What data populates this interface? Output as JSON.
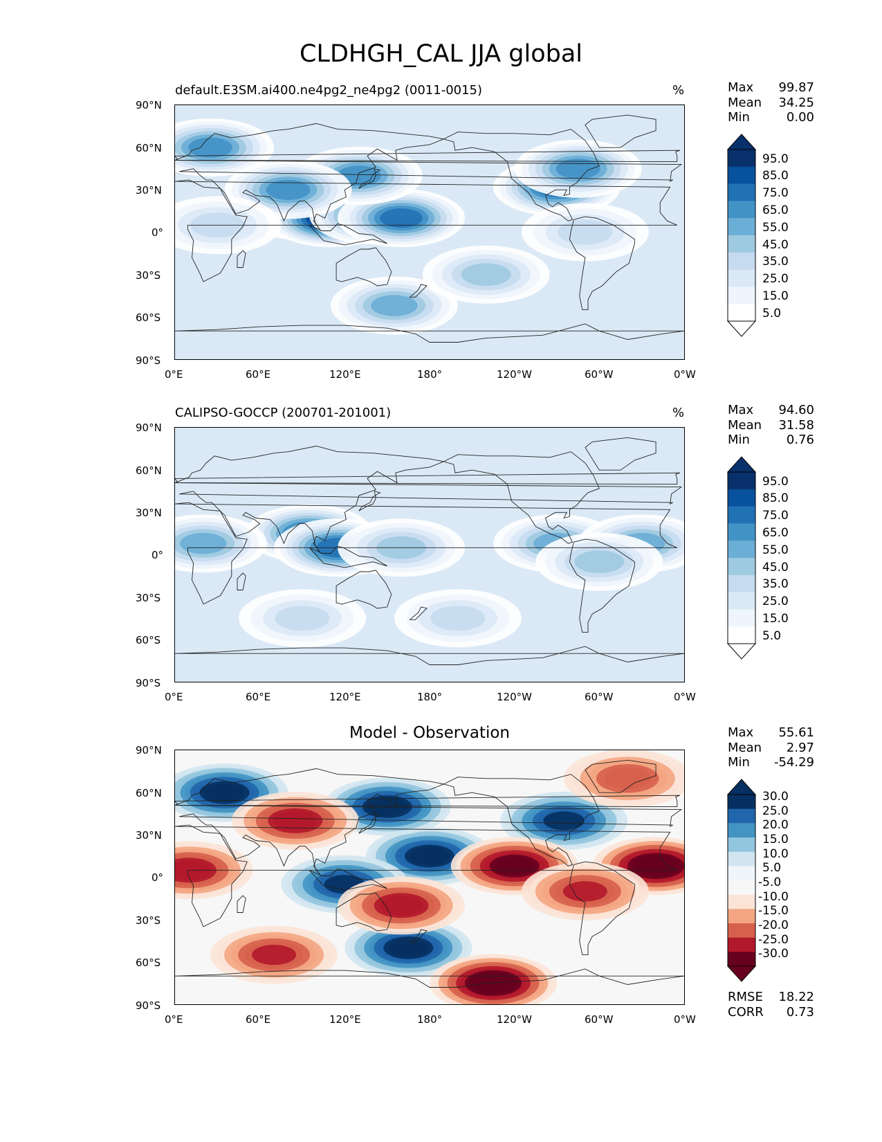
{
  "figure_title": "CLDHGH_CAL JJA global",
  "chart_data": [
    {
      "type": "heatmap",
      "name": "model",
      "title": "default.E3SM.ai400.ne4pg2_ne4pg2 (0011-0015)",
      "units": "%",
      "xticks": [
        "0°E",
        "60°E",
        "120°E",
        "180°",
        "120°W",
        "60°W",
        "0°W"
      ],
      "yticks": [
        "90°N",
        "60°N",
        "30°N",
        "0°",
        "30°S",
        "60°S",
        "90°S"
      ],
      "xlim": [
        0,
        360
      ],
      "ylim": [
        -90,
        90
      ],
      "stats": [
        {
          "name": "Max",
          "value": "99.87"
        },
        {
          "name": "Mean",
          "value": "34.25"
        },
        {
          "name": "Min",
          "value": "0.00"
        }
      ],
      "colorbar": {
        "labels": [
          "95.0",
          "85.0",
          "75.0",
          "65.0",
          "55.0",
          "45.0",
          "35.0",
          "25.0",
          "15.0",
          "5.0"
        ],
        "colors": [
          "#08306b",
          "#08519c",
          "#2171b5",
          "#4292c6",
          "#6baed6",
          "#9ecae1",
          "#c6dbef",
          "#dbe9f6",
          "#eef5fc",
          "#ffffff"
        ],
        "extend": "both"
      },
      "features": [
        {
          "lon": 90,
          "lat": 15,
          "level": 10
        },
        {
          "lon": 110,
          "lat": 10,
          "level": 10
        },
        {
          "lon": 140,
          "lat": 12,
          "level": 8
        },
        {
          "lon": 160,
          "lat": 10,
          "level": 8
        },
        {
          "lon": 130,
          "lat": 40,
          "level": 7
        },
        {
          "lon": 80,
          "lat": 30,
          "level": 7
        },
        {
          "lon": 270,
          "lat": 32,
          "level": 8
        },
        {
          "lon": 285,
          "lat": 45,
          "level": 7
        },
        {
          "lon": 25,
          "lat": 60,
          "level": 7
        },
        {
          "lon": 155,
          "lat": -52,
          "level": 6
        },
        {
          "lon": 220,
          "lat": -30,
          "level": 5
        },
        {
          "lon": 290,
          "lat": 0,
          "level": 4
        },
        {
          "lon": 30,
          "lat": 5,
          "level": 4
        }
      ]
    },
    {
      "type": "heatmap",
      "name": "observation",
      "title": "CALIPSO-GOCCP (200701-201001)",
      "units": "%",
      "xticks": [
        "0°E",
        "60°E",
        "120°E",
        "180°",
        "120°W",
        "60°W",
        "0°W"
      ],
      "yticks": [
        "90°N",
        "60°N",
        "30°N",
        "0°",
        "30°S",
        "60°S",
        "90°S"
      ],
      "xlim": [
        0,
        360
      ],
      "ylim": [
        -90,
        90
      ],
      "stats": [
        {
          "name": "Max",
          "value": "94.60"
        },
        {
          "name": "Mean",
          "value": "31.58"
        },
        {
          "name": "Min",
          "value": "0.76"
        }
      ],
      "colorbar": {
        "labels": [
          "95.0",
          "85.0",
          "75.0",
          "65.0",
          "55.0",
          "45.0",
          "35.0",
          "25.0",
          "15.0",
          "5.0"
        ],
        "colors": [
          "#08306b",
          "#08519c",
          "#2171b5",
          "#4292c6",
          "#6baed6",
          "#9ecae1",
          "#c6dbef",
          "#dbe9f6",
          "#eef5fc",
          "#ffffff"
        ],
        "extend": "both"
      },
      "features": [
        {
          "lon": 95,
          "lat": 15,
          "level": 8
        },
        {
          "lon": 115,
          "lat": 5,
          "level": 8
        },
        {
          "lon": 20,
          "lat": 8,
          "level": 6
        },
        {
          "lon": 270,
          "lat": 8,
          "level": 6
        },
        {
          "lon": 330,
          "lat": 8,
          "level": 6
        },
        {
          "lon": 160,
          "lat": 5,
          "level": 5
        },
        {
          "lon": 300,
          "lat": -5,
          "level": 5
        },
        {
          "lon": 90,
          "lat": -45,
          "level": 4
        },
        {
          "lon": 200,
          "lat": -45,
          "level": 4
        }
      ]
    },
    {
      "type": "heatmap",
      "name": "difference",
      "title": "Model - Observation",
      "xticks": [
        "0°E",
        "60°E",
        "120°E",
        "180°",
        "120°W",
        "60°W",
        "0°W"
      ],
      "yticks": [
        "90°N",
        "60°N",
        "30°N",
        "0°",
        "30°S",
        "60°S",
        "90°S"
      ],
      "xlim": [
        0,
        360
      ],
      "ylim": [
        -90,
        90
      ],
      "stats": [
        {
          "name": "Max",
          "value": "55.61"
        },
        {
          "name": "Mean",
          "value": "2.97"
        },
        {
          "name": "Min",
          "value": "-54.29"
        }
      ],
      "colorbar": {
        "labels": [
          "30.0",
          "25.0",
          "20.0",
          "15.0",
          "10.0",
          "5.0",
          "-5.0",
          "-10.0",
          "-15.0",
          "-20.0",
          "-25.0",
          "-30.0"
        ],
        "colors": [
          "#053061",
          "#2166ac",
          "#4393c3",
          "#92c5de",
          "#d1e5f0",
          "#f0f5f9",
          "#f7f7f7",
          "#fbe3d6",
          "#f4a582",
          "#d6604d",
          "#b2182b",
          "#67001f"
        ],
        "extend": "both"
      },
      "features": [
        {
          "lon": 180,
          "lat": 15,
          "level": 10
        },
        {
          "lon": 150,
          "lat": 50,
          "level": 10
        },
        {
          "lon": 275,
          "lat": 40,
          "level": 9
        },
        {
          "lon": 35,
          "lat": 60,
          "level": 10
        },
        {
          "lon": 165,
          "lat": -50,
          "level": 10
        },
        {
          "lon": 120,
          "lat": -5,
          "level": 9
        },
        {
          "lon": 240,
          "lat": 8,
          "level": -10
        },
        {
          "lon": 340,
          "lat": 8,
          "level": -11
        },
        {
          "lon": 225,
          "lat": -75,
          "level": -11
        },
        {
          "lon": 160,
          "lat": -20,
          "level": -8
        },
        {
          "lon": 290,
          "lat": -10,
          "level": -7
        },
        {
          "lon": 70,
          "lat": -55,
          "level": -7
        },
        {
          "lon": 10,
          "lat": 5,
          "level": -8
        },
        {
          "lon": 85,
          "lat": 40,
          "level": -8
        },
        {
          "lon": 320,
          "lat": 70,
          "level": -6
        }
      ]
    }
  ],
  "error_stats": [
    {
      "name": "RMSE",
      "value": "18.22"
    },
    {
      "name": "CORR",
      "value": "0.73"
    }
  ]
}
